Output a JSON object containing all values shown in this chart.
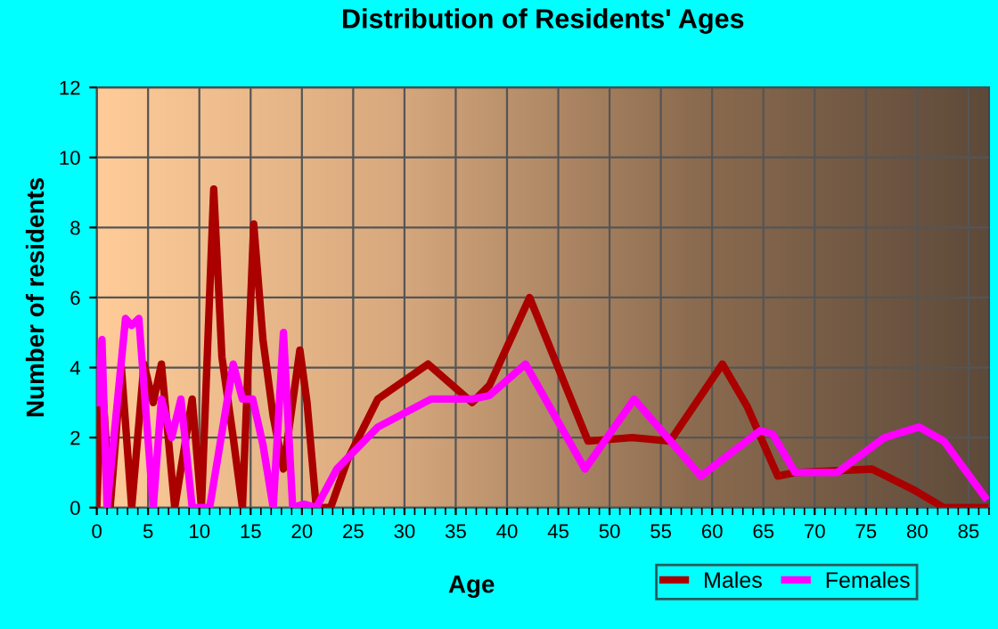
{
  "chart_data": {
    "type": "line",
    "title": "Distribution of Residents' Ages",
    "xlabel": "Age",
    "ylabel": "Number of residents",
    "xlim": [
      0,
      87
    ],
    "xticks": [
      0,
      5,
      10,
      15,
      20,
      25,
      30,
      35,
      40,
      45,
      50,
      55,
      60,
      65,
      70,
      75,
      80,
      85
    ],
    "ylim": [
      0,
      12
    ],
    "yticks": [
      0,
      2,
      4,
      6,
      8,
      10,
      12
    ],
    "grid": true,
    "legend": "bottom right",
    "marker": "none",
    "line_style": "solid",
    "series": [
      {
        "name": "Males",
        "color": "#aa0000",
        "x": [
          0,
          0.5,
          1.3,
          2.4,
          3.4,
          4.6,
          5.5,
          6.3,
          7.6,
          9.3,
          10.2,
          11.4,
          12.2,
          13.3,
          14.2,
          15.3,
          16.2,
          17.2,
          18.2,
          19.8,
          20.5,
          21.4,
          22.8,
          24.5,
          27.4,
          32.3,
          36.6,
          38.3,
          42.2,
          47.9,
          52.2,
          55.9,
          61.0,
          63.4,
          66.4,
          68.1,
          75.6,
          79.7,
          82.6,
          86.6
        ],
        "values": [
          0,
          3.7,
          0,
          4.0,
          0,
          4.1,
          3.0,
          4.1,
          0,
          3.1,
          0,
          9.1,
          4.3,
          2.0,
          0,
          8.1,
          4.8,
          2.6,
          1.1,
          4.5,
          3.0,
          0,
          0,
          1.4,
          3.1,
          4.1,
          3.0,
          3.5,
          6.0,
          1.9,
          2.0,
          1.9,
          4.1,
          2.9,
          0.9,
          1.0,
          1.1,
          0.5,
          0,
          0
        ]
      },
      {
        "name": "Females",
        "color": "#ff00ff",
        "x": [
          0,
          0.5,
          1.0,
          2.8,
          3.4,
          4.1,
          5.5,
          6.3,
          7.3,
          8.2,
          9.3,
          11.0,
          13.3,
          14.2,
          15.2,
          16.2,
          17.2,
          18.2,
          19.1,
          20.2,
          21.4,
          23.4,
          27.4,
          32.6,
          36.6,
          38.3,
          41.8,
          47.6,
          52.4,
          58.9,
          64.7,
          65.9,
          68.1,
          72.2,
          76.8,
          80.2,
          82.6,
          86.6
        ],
        "values": [
          3.0,
          4.8,
          0,
          5.4,
          5.2,
          5.4,
          0,
          3.1,
          2.0,
          3.1,
          0,
          0,
          4.1,
          3.1,
          3.1,
          1.8,
          0,
          5.0,
          0,
          0.1,
          0,
          1.1,
          2.3,
          3.1,
          3.1,
          3.2,
          4.1,
          1.1,
          3.1,
          0.9,
          2.2,
          2.1,
          1.0,
          1.0,
          2.0,
          2.3,
          1.9,
          0.3
        ]
      }
    ]
  }
}
